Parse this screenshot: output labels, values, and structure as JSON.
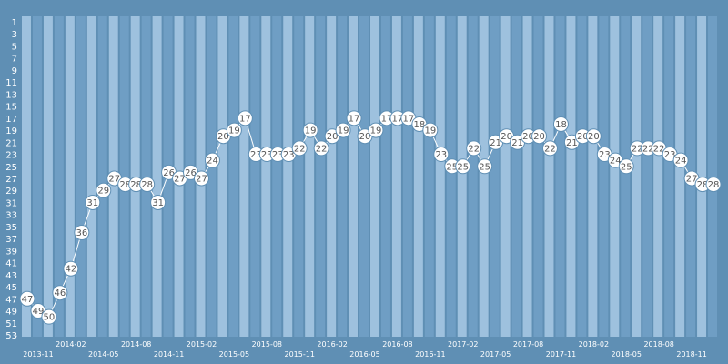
{
  "chart_data": {
    "type": "line",
    "title": "",
    "xlabel": "",
    "ylabel": "",
    "y_inverted": true,
    "ylim": [
      1,
      53
    ],
    "y_ticks": [
      "1",
      "3",
      "5",
      "7",
      "9",
      "11",
      "13",
      "15",
      "17",
      "19",
      "21",
      "23",
      "25",
      "27",
      "29",
      "31",
      "33",
      "35",
      "37",
      "39",
      "41",
      "43",
      "45",
      "47",
      "49",
      "51",
      "53"
    ],
    "x_ticks": [
      {
        "index": 1,
        "label": "2013-11"
      },
      {
        "index": 4,
        "label": "2014-02"
      },
      {
        "index": 7,
        "label": "2014-05"
      },
      {
        "index": 10,
        "label": "2014-08"
      },
      {
        "index": 13,
        "label": "2014-11"
      },
      {
        "index": 16,
        "label": "2015-02"
      },
      {
        "index": 19,
        "label": "2015-05"
      },
      {
        "index": 22,
        "label": "2015-08"
      },
      {
        "index": 25,
        "label": "2015-11"
      },
      {
        "index": 28,
        "label": "2016-02"
      },
      {
        "index": 31,
        "label": "2016-05"
      },
      {
        "index": 34,
        "label": "2016-08"
      },
      {
        "index": 37,
        "label": "2016-11"
      },
      {
        "index": 40,
        "label": "2017-02"
      },
      {
        "index": 43,
        "label": "2017-05"
      },
      {
        "index": 46,
        "label": "2017-08"
      },
      {
        "index": 49,
        "label": "2017-11"
      },
      {
        "index": 52,
        "label": "2018-02"
      },
      {
        "index": 55,
        "label": "2018-05"
      },
      {
        "index": 58,
        "label": "2018-08"
      },
      {
        "index": 61,
        "label": "2018-11"
      }
    ],
    "values": [
      47,
      49,
      50,
      46,
      42,
      36,
      31,
      29,
      27,
      28,
      28,
      28,
      31,
      26,
      27,
      26,
      27,
      24,
      20,
      19,
      17,
      23,
      23,
      23,
      23,
      22,
      19,
      22,
      20,
      19,
      17,
      20,
      19,
      17,
      17,
      17,
      18,
      19,
      23,
      25,
      25,
      22,
      25,
      21,
      20,
      21,
      20,
      20,
      22,
      18,
      21,
      20,
      20,
      23,
      24,
      25,
      22,
      22,
      22,
      23,
      24,
      27,
      28,
      28
    ]
  },
  "colors": {
    "background": "#5f8fb4",
    "band_light": "#9ec1de",
    "band_dark": "#6f9ec4",
    "line": "#ffffff",
    "marker_fill": "#ffffff",
    "marker_stroke": "#5f8fb4",
    "label_text": "#555555"
  }
}
